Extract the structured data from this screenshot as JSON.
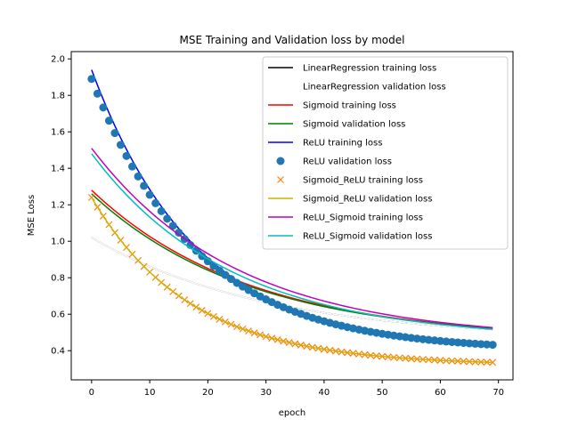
{
  "chart_data": {
    "type": "line",
    "title": "MSE Training and Validation loss by model",
    "xlabel": "epoch",
    "ylabel": "MSE Loss",
    "xlim": [
      -3.5,
      72.5
    ],
    "ylim": [
      0.24,
      2.04
    ],
    "xticks": [
      "0",
      "10",
      "20",
      "30",
      "40",
      "50",
      "60",
      "70"
    ],
    "yticks": [
      "0.4",
      "0.6",
      "0.8",
      "1.0",
      "1.2",
      "1.4",
      "1.6",
      "1.8",
      "2.0"
    ],
    "grid": false,
    "legend_position": "top-right",
    "epochs": 70,
    "series": [
      {
        "name": "LinearRegression training loss",
        "color": "#000000",
        "style": "line",
        "start": 1.02,
        "end": 0.46,
        "decay": 30
      },
      {
        "name": "LinearRegression validation loss",
        "color": "#ffffff",
        "style": "line",
        "start": 1.02,
        "end": 0.46,
        "decay": 30
      },
      {
        "name": "Sigmoid training loss",
        "color": "#ff0000",
        "style": "line",
        "start": 1.28,
        "end": 0.46,
        "decay": 27
      },
      {
        "name": "Sigmoid validation loss",
        "color": "#008000",
        "style": "line",
        "start": 1.26,
        "end": 0.46,
        "decay": 27
      },
      {
        "name": "ReLU training loss",
        "color": "#0000ff",
        "style": "line",
        "start": 1.94,
        "end": 0.4,
        "decay": 18
      },
      {
        "name": "ReLU validation loss",
        "color": "#1f77b4",
        "style": "marker-circle",
        "start": 1.89,
        "end": 0.4,
        "decay": 18
      },
      {
        "name": "Sigmoid_ReLU training loss",
        "color": "#ff7f0e",
        "style": "marker-x",
        "start": 1.24,
        "end": 0.32,
        "decay": 17
      },
      {
        "name": "Sigmoid_ReLU validation loss",
        "color": "#ccb400",
        "style": "line",
        "start": 1.24,
        "end": 0.32,
        "decay": 17
      },
      {
        "name": "ReLU_Sigmoid training loss",
        "color": "#bf00bf",
        "style": "line",
        "start": 1.51,
        "end": 0.46,
        "decay": 25
      },
      {
        "name": "ReLU_Sigmoid validation loss",
        "color": "#00bfbf",
        "style": "line",
        "start": 1.48,
        "end": 0.46,
        "decay": 24
      }
    ]
  }
}
